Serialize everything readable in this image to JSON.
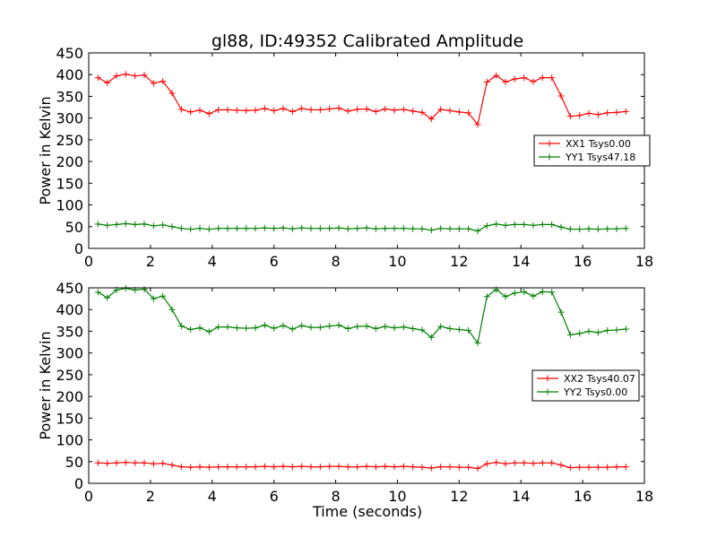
{
  "figure": {
    "title": "gl88, ID:49352 Calibrated Amplitude",
    "xlabel": "Time (seconds)"
  },
  "chart_data": [
    {
      "type": "line",
      "ylabel": "Power in Kelvin",
      "xlim": [
        0,
        18
      ],
      "ylim": [
        0,
        450
      ],
      "xticks": [
        0,
        2,
        4,
        6,
        8,
        10,
        12,
        14,
        16,
        18
      ],
      "yticks": [
        0,
        50,
        100,
        150,
        200,
        250,
        300,
        350,
        400,
        450
      ],
      "grid": false,
      "legend_position": "center-right",
      "x": [
        0.3,
        0.6,
        0.9,
        1.2,
        1.5,
        1.8,
        2.1,
        2.4,
        2.7,
        3.0,
        3.3,
        3.6,
        3.9,
        4.2,
        4.5,
        4.8,
        5.1,
        5.4,
        5.7,
        6.0,
        6.3,
        6.6,
        6.9,
        7.2,
        7.5,
        7.8,
        8.1,
        8.4,
        8.7,
        9.0,
        9.3,
        9.6,
        9.9,
        10.2,
        10.5,
        10.8,
        11.1,
        11.4,
        11.7,
        12.0,
        12.3,
        12.6,
        12.9,
        13.2,
        13.5,
        13.8,
        14.1,
        14.4,
        14.7,
        15.0,
        15.3,
        15.6,
        15.9,
        16.2,
        16.5,
        16.8,
        17.1,
        17.4
      ],
      "series": [
        {
          "name": "XX1 Tsys0.00",
          "color": "#ff0000",
          "marker": "+",
          "values": [
            393,
            381,
            397,
            401,
            397,
            399,
            380,
            385,
            357,
            320,
            314,
            318,
            310,
            319,
            319,
            318,
            317,
            318,
            322,
            317,
            322,
            315,
            322,
            319,
            319,
            321,
            323,
            316,
            320,
            321,
            315,
            321,
            318,
            320,
            316,
            313,
            298,
            320,
            317,
            314,
            312,
            285,
            383,
            398,
            383,
            390,
            393,
            384,
            393,
            393,
            351,
            304,
            306,
            311,
            308,
            312,
            313,
            315
          ]
        },
        {
          "name": "YY1 Tsys47.18",
          "color": "#008000",
          "marker": "+",
          "values": [
            56,
            53,
            55,
            57,
            55,
            56,
            52,
            54,
            50,
            46,
            44,
            46,
            44,
            46,
            46,
            46,
            46,
            46,
            47,
            46,
            47,
            45,
            47,
            46,
            46,
            46,
            47,
            45,
            46,
            47,
            45,
            46,
            46,
            46,
            45,
            45,
            42,
            46,
            45,
            45,
            45,
            40,
            52,
            56,
            53,
            55,
            55,
            53,
            55,
            55,
            49,
            44,
            44,
            45,
            44,
            45,
            45,
            46
          ]
        }
      ]
    },
    {
      "type": "line",
      "ylabel": "Power in Kelvin",
      "xlabel": "Time (seconds)",
      "xlim": [
        0,
        18
      ],
      "ylim": [
        0,
        450
      ],
      "xticks": [
        0,
        2,
        4,
        6,
        8,
        10,
        12,
        14,
        16,
        18
      ],
      "yticks": [
        0,
        50,
        100,
        150,
        200,
        250,
        300,
        350,
        400,
        450
      ],
      "grid": false,
      "legend_position": "center-right",
      "x": [
        0.3,
        0.6,
        0.9,
        1.2,
        1.5,
        1.8,
        2.1,
        2.4,
        2.7,
        3.0,
        3.3,
        3.6,
        3.9,
        4.2,
        4.5,
        4.8,
        5.1,
        5.4,
        5.7,
        6.0,
        6.3,
        6.6,
        6.9,
        7.2,
        7.5,
        7.8,
        8.1,
        8.4,
        8.7,
        9.0,
        9.3,
        9.6,
        9.9,
        10.2,
        10.5,
        10.8,
        11.1,
        11.4,
        11.7,
        12.0,
        12.3,
        12.6,
        12.9,
        13.2,
        13.5,
        13.8,
        14.1,
        14.4,
        14.7,
        15.0,
        15.3,
        15.6,
        15.9,
        16.2,
        16.5,
        16.8,
        17.1,
        17.4
      ],
      "series": [
        {
          "name": "XX2 Tsys40.07",
          "color": "#ff0000",
          "marker": "+",
          "values": [
            47,
            46,
            47,
            48,
            47,
            47,
            45,
            46,
            42,
            38,
            37,
            38,
            37,
            38,
            38,
            38,
            38,
            38,
            39,
            38,
            39,
            38,
            39,
            38,
            38,
            39,
            39,
            38,
            38,
            39,
            38,
            39,
            38,
            39,
            38,
            37,
            35,
            38,
            38,
            37,
            37,
            34,
            45,
            48,
            45,
            47,
            47,
            46,
            47,
            47,
            42,
            36,
            37,
            37,
            37,
            37,
            38,
            38
          ]
        },
        {
          "name": "YY2 Tsys0.00",
          "color": "#008000",
          "marker": "+",
          "values": [
            440,
            427,
            445,
            449,
            445,
            447,
            425,
            431,
            400,
            362,
            354,
            358,
            349,
            360,
            360,
            358,
            357,
            358,
            364,
            357,
            363,
            355,
            363,
            359,
            359,
            362,
            364,
            356,
            361,
            362,
            356,
            361,
            358,
            360,
            356,
            353,
            336,
            361,
            356,
            354,
            352,
            323,
            430,
            446,
            430,
            438,
            441,
            431,
            441,
            440,
            394,
            342,
            345,
            350,
            347,
            352,
            353,
            355
          ]
        }
      ]
    }
  ]
}
